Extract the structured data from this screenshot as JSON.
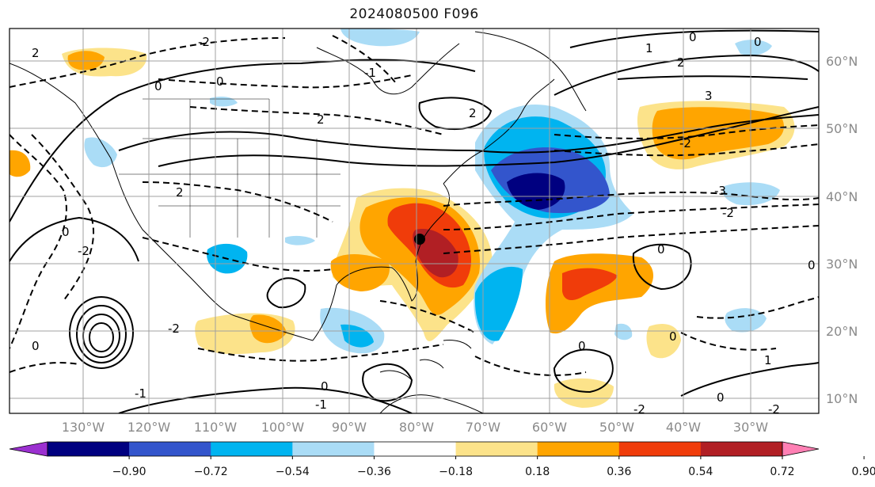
{
  "title": "2024080500 F096",
  "longitude_labels": [
    "130°W",
    "120°W",
    "110°W",
    "100°W",
    "90°W",
    "80°W",
    "70°W",
    "60°W",
    "50°W",
    "40°W",
    "30°W"
  ],
  "latitude_labels": [
    "60°N",
    "50°N",
    "40°N",
    "30°N",
    "20°N",
    "10°N"
  ],
  "colorbar": {
    "tick_labels": [
      "−0.90",
      "−0.72",
      "−0.54",
      "−0.36",
      "−0.18",
      "0.18",
      "0.36",
      "0.54",
      "0.72",
      "0.90"
    ],
    "colors": [
      "#9b30d0",
      "#000080",
      "#3355cc",
      "#00b4f0",
      "#aadcf6",
      "#ffffff",
      "#fce38a",
      "#ffa500",
      "#f03c0a",
      "#b11f24",
      "#ff80b4"
    ]
  },
  "contour_labels": [
    "-2",
    "2",
    "0",
    "-1",
    "1",
    "-3",
    "3"
  ],
  "colors": {
    "land": "#ffffff",
    "grid": "#a0a0a0",
    "contour": "#000000",
    "axis_text": "#8a8a8a"
  }
}
